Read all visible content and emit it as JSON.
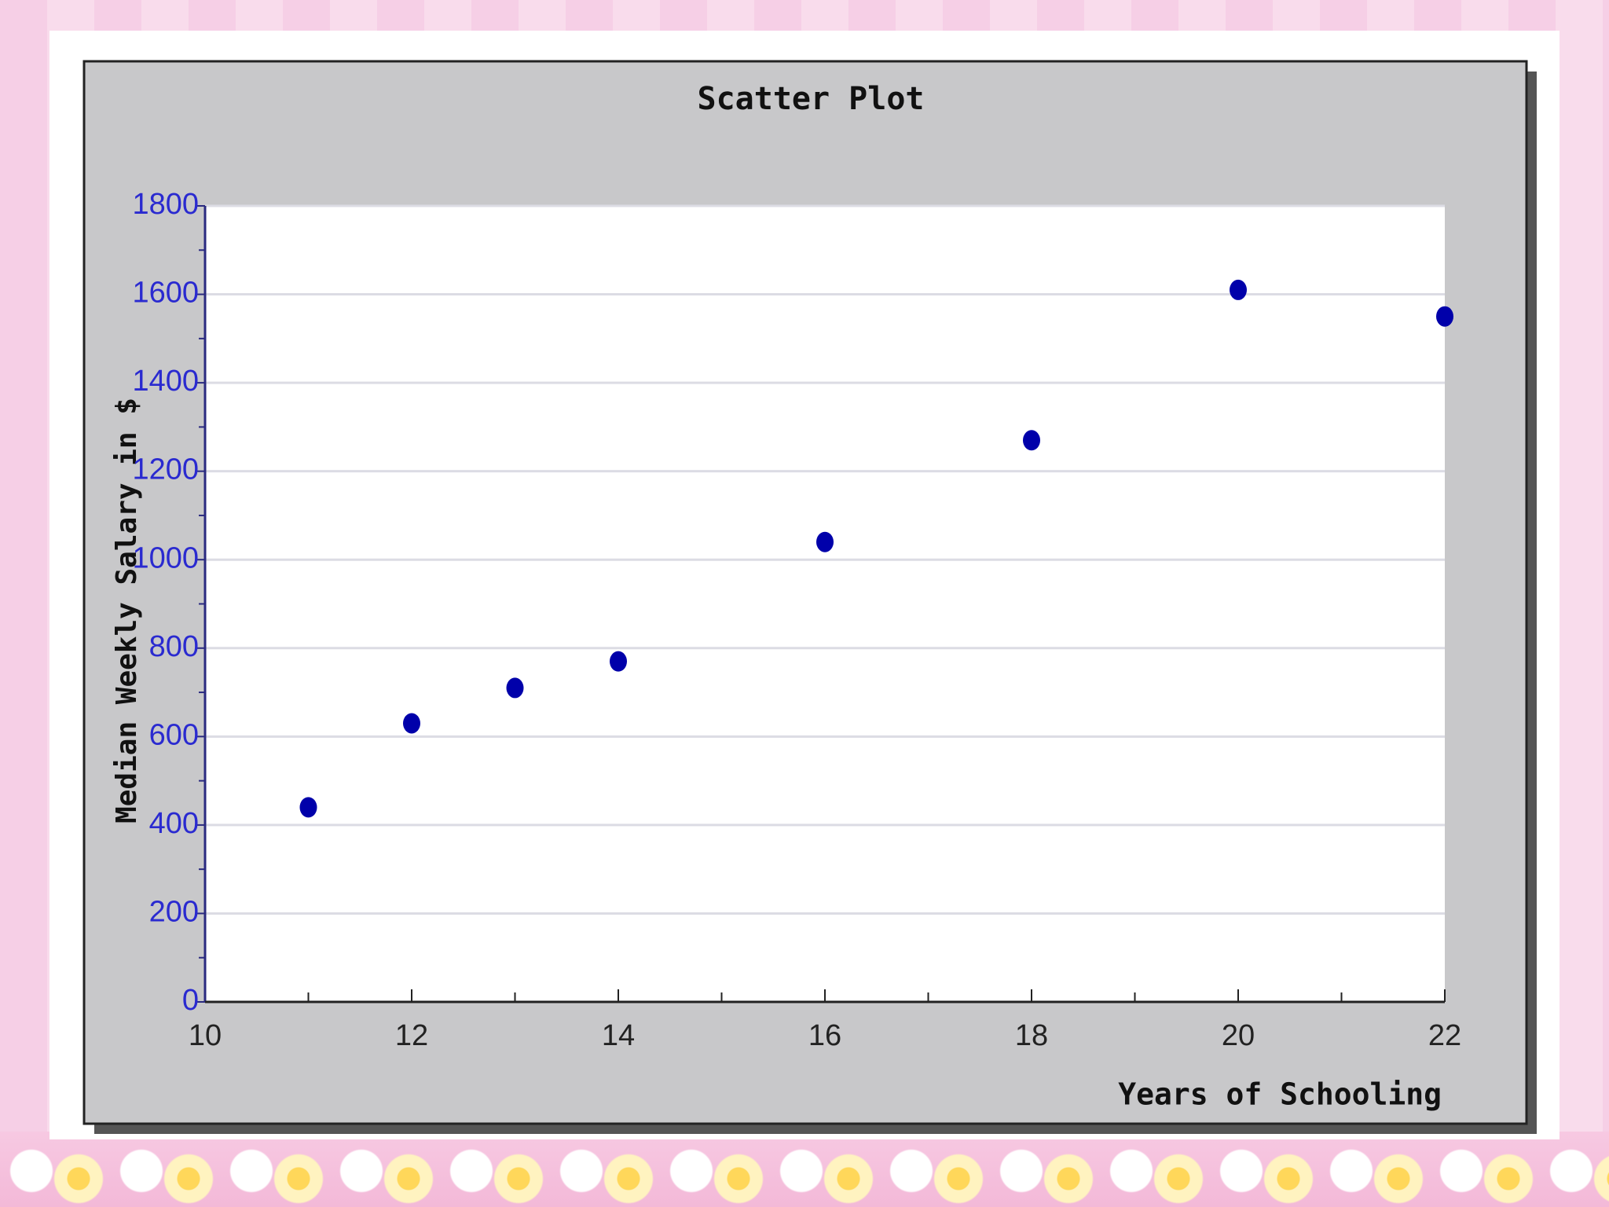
{
  "chart_data": {
    "type": "scatter",
    "title": "Scatter Plot",
    "x_label": "Years of Schooling",
    "y_label": "Median Weekly Salary in $",
    "x": [
      11,
      12,
      13,
      14,
      16,
      18,
      20,
      22
    ],
    "y": [
      440,
      630,
      710,
      770,
      1040,
      1270,
      1610,
      1550
    ],
    "color": "#0000aa",
    "tick_label_color": "#2a2ad0",
    "xlim": [
      10,
      22
    ],
    "ylim": [
      0,
      1800
    ],
    "xticks": [
      10,
      12,
      14,
      16,
      18,
      20,
      22
    ],
    "yticks": [
      0,
      200,
      400,
      600,
      800,
      1000,
      1200,
      1400,
      1600,
      1800
    ],
    "xminorticks": [
      11,
      13,
      15,
      17,
      19,
      21
    ],
    "yminorticks": [
      100,
      300,
      500,
      700,
      900,
      1100,
      1300,
      1500,
      1700
    ],
    "grid": true
  }
}
